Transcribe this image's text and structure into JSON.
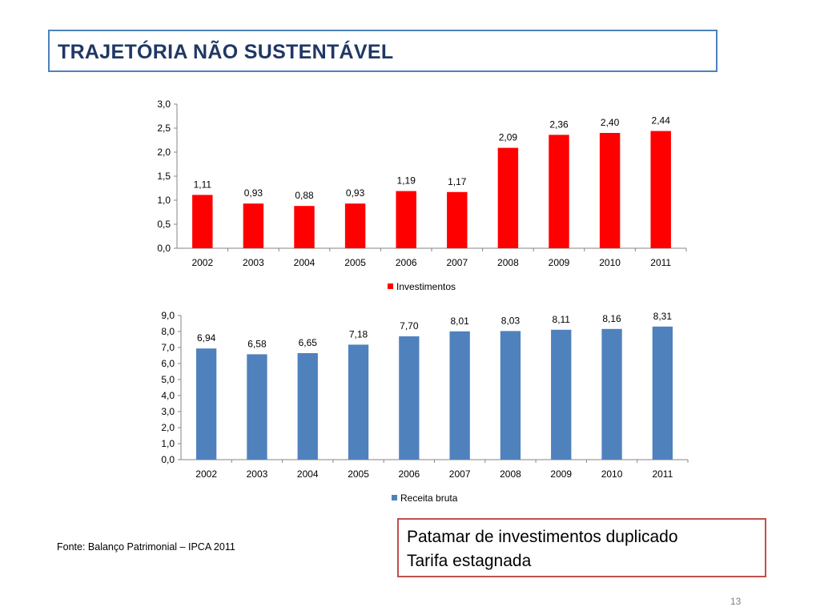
{
  "slide": {
    "title": "TRAJETÓRIA NÃO SUSTENTÁVEL",
    "source": "Fonte: Balanço Patrimonial – IPCA 2011",
    "note_lines": [
      "Patamar de investimentos duplicado",
      "Tarifa estagnada"
    ],
    "page_number": "13"
  },
  "colors": {
    "title_text": "#1f3864",
    "title_border": "#4f81bd",
    "note_border": "#c0504d"
  },
  "chart_data": [
    {
      "type": "bar",
      "categories": [
        "2002",
        "2003",
        "2004",
        "2005",
        "2006",
        "2007",
        "2008",
        "2009",
        "2010",
        "2011"
      ],
      "series": [
        {
          "name": "Investimentos",
          "color": "#ff0000",
          "values": [
            1.11,
            0.93,
            0.88,
            0.93,
            1.19,
            1.17,
            2.09,
            2.36,
            2.4,
            2.44
          ],
          "labels": [
            "1,11",
            "0,93",
            "0,88",
            "0,93",
            "1,19",
            "1,17",
            "2,09",
            "2,36",
            "2,40",
            "2,44"
          ]
        }
      ],
      "ylim": [
        0,
        3
      ],
      "yticks": [
        "0,0",
        "0,5",
        "1,0",
        "1,5",
        "2,0",
        "2,5",
        "3,0"
      ],
      "ytick_values": [
        0,
        0.5,
        1.0,
        1.5,
        2.0,
        2.5,
        3.0
      ],
      "grid": false,
      "legend": "bottom-center"
    },
    {
      "type": "bar",
      "categories": [
        "2002",
        "2003",
        "2004",
        "2005",
        "2006",
        "2007",
        "2008",
        "2009",
        "2010",
        "2011"
      ],
      "series": [
        {
          "name": "Receita bruta",
          "color": "#4f81bd",
          "values": [
            6.94,
            6.58,
            6.65,
            7.18,
            7.7,
            8.01,
            8.03,
            8.11,
            8.16,
            8.31
          ],
          "labels": [
            "6,94",
            "6,58",
            "6,65",
            "7,18",
            "7,70",
            "8,01",
            "8,03",
            "8,11",
            "8,16",
            "8,31"
          ]
        }
      ],
      "ylim": [
        0,
        9
      ],
      "yticks": [
        "0,0",
        "1,0",
        "2,0",
        "3,0",
        "4,0",
        "5,0",
        "6,0",
        "7,0",
        "8,0",
        "9,0"
      ],
      "ytick_values": [
        0,
        1,
        2,
        3,
        4,
        5,
        6,
        7,
        8,
        9
      ],
      "grid": false,
      "legend": "bottom-center"
    }
  ]
}
